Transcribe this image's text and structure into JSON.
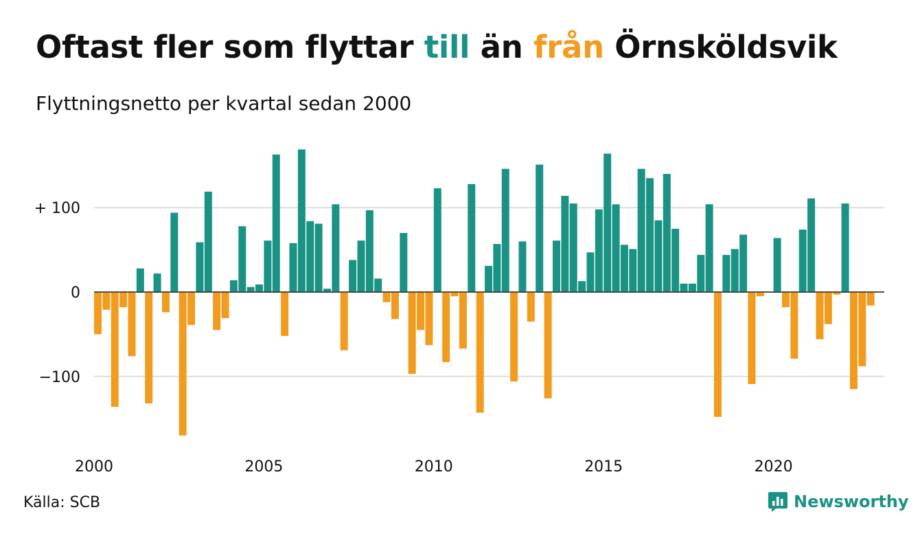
{
  "title": {
    "part1": "Oftast fler som flyttar ",
    "till": "till",
    "part2": " än ",
    "fran": "från",
    "part3": " Örnsköldsvik"
  },
  "subtitle": "Flyttningsnetto per kvartal sedan 2000",
  "source": "Källa: SCB",
  "logo": {
    "text": "Newsworthy"
  },
  "colors": {
    "positive": "#1a9384",
    "negative": "#f29c1f",
    "grid": "#dddddd"
  },
  "chart_data": {
    "type": "bar",
    "start_year": 2000,
    "quarters_per_year": 4,
    "ylim": [
      -170,
      170
    ],
    "yticks": [
      {
        "value": 100,
        "label": "+ 100"
      },
      {
        "value": 0,
        "label": "0"
      },
      {
        "value": -100,
        "label": "−100"
      }
    ],
    "xticks": [
      "2000",
      "2005",
      "2010",
      "2015",
      "2020"
    ],
    "grid": true,
    "values": [
      -50,
      -21,
      -136,
      -18,
      -76,
      28,
      -132,
      22,
      -24,
      94,
      -170,
      -39,
      59,
      119,
      -45,
      -31,
      14,
      78,
      6,
      9,
      61,
      163,
      -52,
      58,
      169,
      84,
      81,
      4,
      104,
      -69,
      38,
      61,
      97,
      16,
      -12,
      -32,
      70,
      -97,
      -45,
      -63,
      123,
      -83,
      -5,
      -67,
      128,
      -143,
      31,
      57,
      146,
      -106,
      60,
      -35,
      151,
      -126,
      61,
      114,
      105,
      13,
      47,
      98,
      164,
      104,
      56,
      51,
      146,
      135,
      85,
      140,
      75,
      10,
      10,
      44,
      104,
      -148,
      44,
      51,
      68,
      -109,
      -5,
      0,
      64,
      -18,
      -79,
      74,
      111,
      -56,
      -38,
      -3,
      105,
      -115,
      -88,
      -16
    ]
  }
}
